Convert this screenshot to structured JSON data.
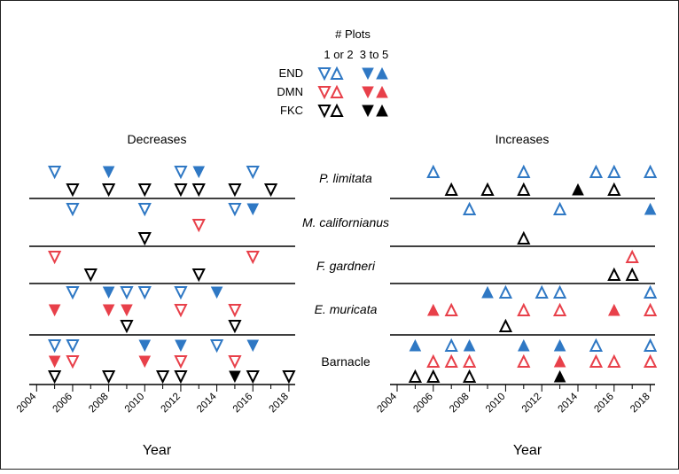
{
  "chart_data": {
    "type": "scatter",
    "legend": {
      "title": "# Plots",
      "columns": [
        "1 or 2",
        "3 to 5"
      ],
      "groups": [
        {
          "name": "END",
          "color": "#2f78c4"
        },
        {
          "name": "DMN",
          "color": "#e8404a"
        },
        {
          "name": "FKC",
          "color": "#000000"
        }
      ],
      "placement": "top-center",
      "markers": "open triangles = 1 or 2 plots; filled triangles = 3 to 5 plots"
    },
    "panels": [
      {
        "title": "Decreases",
        "marker": "triangle-down",
        "xlabel": "Year",
        "xlim": [
          2003.5,
          2018.5
        ],
        "ticks": [
          "2004",
          "2006",
          "2008",
          "2010",
          "2012",
          "2014",
          "2016",
          "2018"
        ]
      },
      {
        "title": "Increases",
        "marker": "triangle-up",
        "xlabel": "Year",
        "xlim": [
          2003.5,
          2018.5
        ],
        "ticks": [
          "2004",
          "2006",
          "2008",
          "2010",
          "2012",
          "2014",
          "2016",
          "2018"
        ]
      }
    ],
    "species": [
      {
        "label": "P. limitata",
        "italic": true,
        "decreases": {
          "END": {
            "open": [
              2005,
              2012,
              2016
            ],
            "filled": [
              2008,
              2013
            ]
          },
          "DMN": {
            "open": [],
            "filled": []
          },
          "FKC": {
            "open": [
              2006,
              2008,
              2010,
              2012,
              2013,
              2015,
              2017
            ],
            "filled": []
          }
        },
        "increases": {
          "END": {
            "open": [
              2006,
              2011,
              2015,
              2016,
              2018
            ],
            "filled": []
          },
          "DMN": {
            "open": [],
            "filled": []
          },
          "FKC": {
            "open": [
              2007,
              2009,
              2011,
              2016
            ],
            "filled": [
              2014
            ]
          }
        }
      },
      {
        "label": "M. californianus",
        "italic": true,
        "decreases": {
          "END": {
            "open": [
              2006,
              2010,
              2015
            ],
            "filled": [
              2016
            ]
          },
          "DMN": {
            "open": [
              2013
            ],
            "filled": []
          },
          "FKC": {
            "open": [
              2010
            ],
            "filled": []
          }
        },
        "increases": {
          "END": {
            "open": [
              2008,
              2013
            ],
            "filled": [
              2018
            ]
          },
          "DMN": {
            "open": [],
            "filled": []
          },
          "FKC": {
            "open": [
              2011
            ],
            "filled": []
          }
        }
      },
      {
        "label": "F. gardneri",
        "italic": true,
        "decreases": {
          "END": {
            "open": [],
            "filled": []
          },
          "DMN": {
            "open": [
              2005,
              2016
            ],
            "filled": []
          },
          "FKC": {
            "open": [
              2007,
              2013
            ],
            "filled": []
          }
        },
        "increases": {
          "END": {
            "open": [],
            "filled": []
          },
          "DMN": {
            "open": [
              2017
            ],
            "filled": []
          },
          "FKC": {
            "open": [
              2016,
              2017
            ],
            "filled": []
          }
        }
      },
      {
        "label": "E. muricata",
        "italic": true,
        "decreases": {
          "END": {
            "open": [
              2006,
              2009,
              2010,
              2012
            ],
            "filled": [
              2008,
              2014
            ]
          },
          "DMN": {
            "open": [
              2012,
              2015
            ],
            "filled": [
              2005,
              2008,
              2009
            ]
          },
          "FKC": {
            "open": [
              2009,
              2015
            ],
            "filled": []
          }
        },
        "increases": {
          "END": {
            "open": [
              2010,
              2012,
              2013,
              2018
            ],
            "filled": [
              2009
            ]
          },
          "DMN": {
            "open": [
              2007,
              2011,
              2013,
              2018
            ],
            "filled": [
              2006,
              2016
            ]
          },
          "FKC": {
            "open": [
              2010
            ],
            "filled": []
          }
        }
      },
      {
        "label": "Barnacle",
        "italic": false,
        "decreases": {
          "END": {
            "open": [
              2005,
              2006,
              2014
            ],
            "filled": [
              2010,
              2012,
              2016
            ]
          },
          "DMN": {
            "open": [
              2006,
              2012,
              2015
            ],
            "filled": [
              2005,
              2010
            ]
          },
          "FKC": {
            "open": [
              2005,
              2008,
              2011,
              2012,
              2016,
              2018
            ],
            "filled": [
              2015
            ]
          }
        },
        "increases": {
          "END": {
            "open": [
              2007,
              2015,
              2018
            ],
            "filled": [
              2005,
              2008,
              2011,
              2013
            ]
          },
          "DMN": {
            "open": [
              2006,
              2007,
              2008,
              2011,
              2015,
              2016,
              2018
            ],
            "filled": [
              2013
            ]
          },
          "FKC": {
            "open": [
              2005,
              2006,
              2008
            ],
            "filled": [
              2013
            ]
          }
        }
      }
    ]
  }
}
